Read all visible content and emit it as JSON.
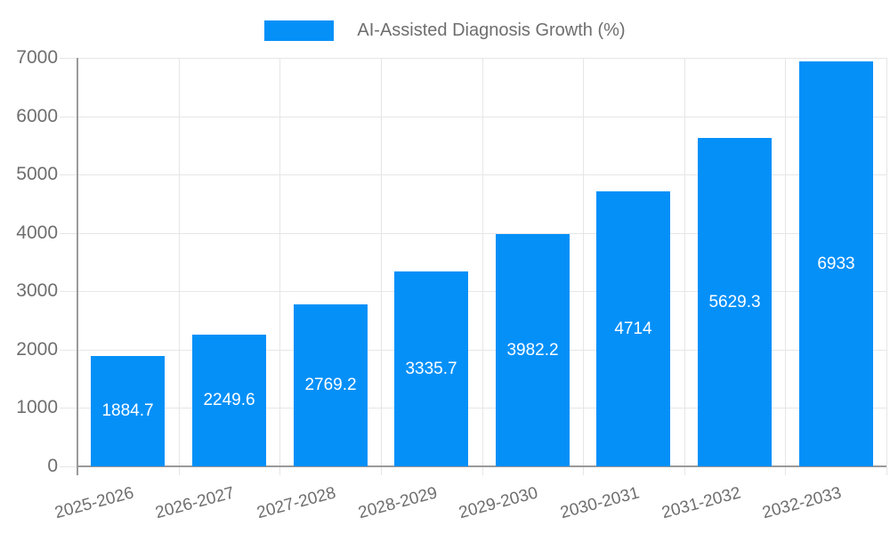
{
  "chart_data": {
    "type": "bar",
    "title": "AI-Assisted Diagnosis Growth (%)",
    "legend_position": "top",
    "legend_entries": [
      "AI-Assisted Diagnosis Growth (%)"
    ],
    "categories": [
      "2025-2026",
      "2026-2027",
      "2027-2028",
      "2028-2029",
      "2029-2030",
      "2030-2031",
      "2031-2032",
      "2032-2033"
    ],
    "values": [
      1884.7,
      2249.6,
      2769.2,
      3335.7,
      3982.2,
      4714,
      5629.3,
      6933
    ],
    "value_labels": [
      "1884.7",
      "2249.6",
      "2769.2",
      "3335.7",
      "3982.2",
      "4714",
      "5629.3",
      "6933"
    ],
    "xlabel": "",
    "ylabel": "",
    "ylim": [
      0,
      7000
    ],
    "y_ticks": [
      0,
      1000,
      2000,
      3000,
      4000,
      5000,
      6000,
      7000
    ],
    "y_tick_labels": [
      "0",
      "1000",
      "2000",
      "3000",
      "4000",
      "5000",
      "6000",
      "7000"
    ],
    "grid": true,
    "x_tick_rotation_deg": -15,
    "colors": {
      "bar": "#0590f8",
      "value_label": "#ffffff",
      "axis_text": "#6e6e6e",
      "gridline": "#e6e6e6",
      "axis_line": "#9a9a9a",
      "background": "#ffffff"
    }
  }
}
